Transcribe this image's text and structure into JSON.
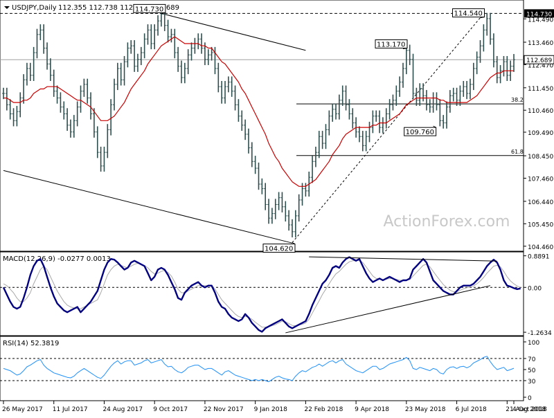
{
  "chart_data": [
    {
      "type": "line",
      "title": "USDJPY,Daily",
      "ohlc_text": "112.355 112.738 112.304 112.689",
      "watermark": "ActionForex.com",
      "ylim": [
        104.3,
        115.2
      ],
      "y_ticks": [
        114.49,
        113.46,
        112.47,
        111.45,
        110.46,
        109.49,
        108.45,
        107.46,
        106.44,
        105.45,
        104.46
      ],
      "y_tick_labels": [
        "114.490",
        "113.460",
        "112.470",
        "111.450",
        "110.460",
        "109.490",
        "108.450",
        "107.460",
        "106.440",
        "105.450",
        "104.460"
      ],
      "last_price": 112.689,
      "last_price_label": "112.689",
      "top_level": 114.73,
      "top_level_label": "114.730",
      "fib_levels": [
        {
          "label": "38.2",
          "value": 110.74
        },
        {
          "label": "61.8",
          "value": 108.46
        }
      ],
      "annotations": [
        {
          "label": "114.730",
          "index": 47,
          "value": 114.73
        },
        {
          "label": "104.620",
          "index": 86,
          "value": 104.62
        },
        {
          "label": "113.170",
          "index": 119,
          "value": 113.17
        },
        {
          "label": "109.760",
          "index": 128,
          "value": 109.76
        },
        {
          "label": "114.540",
          "index": 142,
          "value": 114.54
        }
      ],
      "trendlines": [
        {
          "from": [
            47,
            114.73
          ],
          "to": [
            90,
            113.1
          ],
          "style": "solid"
        },
        {
          "from": [
            0,
            107.8
          ],
          "to": [
            86,
            104.6
          ],
          "style": "solid"
        },
        {
          "from": [
            86,
            104.62
          ],
          "to": [
            142,
            114.54
          ],
          "style": "dashed"
        }
      ],
      "series": [
        {
          "name": "",
          "kind": "price",
          "values": [
            111.2,
            110.7,
            110.3,
            110.0,
            110.4,
            111.0,
            111.8,
            112.3,
            112.0,
            113.0,
            113.8,
            114.0,
            113.2,
            112.5,
            112.0,
            111.3,
            111.0,
            110.6,
            110.3,
            109.8,
            109.5,
            110.0,
            110.6,
            111.3,
            111.6,
            111.0,
            110.3,
            109.5,
            108.6,
            108.0,
            108.6,
            109.6,
            110.7,
            111.6,
            112.3,
            111.8,
            112.6,
            113.2,
            113.3,
            112.4,
            112.7,
            113.0,
            113.6,
            114.0,
            113.4,
            114.0,
            114.4,
            114.7,
            114.2,
            113.7,
            113.8,
            113.0,
            112.4,
            111.9,
            112.3,
            112.9,
            113.2,
            113.4,
            113.6,
            113.2,
            112.7,
            112.9,
            113.0,
            112.3,
            111.5,
            111.0,
            111.5,
            111.7,
            111.3,
            110.7,
            110.2,
            109.8,
            109.4,
            108.8,
            108.2,
            107.9,
            107.2,
            107.0,
            106.3,
            105.7,
            105.9,
            106.3,
            106.6,
            106.2,
            105.8,
            105.4,
            105.1,
            105.8,
            106.5,
            107.0,
            106.9,
            107.5,
            108.2,
            108.6,
            109.3,
            109.0,
            109.6,
            110.2,
            110.5,
            110.3,
            110.9,
            111.3,
            110.7,
            110.3,
            109.9,
            109.5,
            109.3,
            108.9,
            109.3,
            109.7,
            110.2,
            110.2,
            109.7,
            109.9,
            110.3,
            110.7,
            110.9,
            111.3,
            111.7,
            112.3,
            113.1,
            112.7,
            111.2,
            110.9,
            111.4,
            111.1,
            110.7,
            110.6,
            111.0,
            110.7,
            110.0,
            109.9,
            110.6,
            111.1,
            111.2,
            110.9,
            111.3,
            111.5,
            111.2,
            111.6,
            112.3,
            112.8,
            113.3,
            114.0,
            114.5,
            113.6,
            112.6,
            111.9,
            112.2,
            112.6,
            112.0,
            112.4,
            112.689
          ]
        },
        {
          "name": "",
          "kind": "moving-average",
          "values": [
            111.0,
            111.0,
            110.9,
            110.8,
            110.8,
            110.8,
            110.9,
            110.9,
            111.0,
            111.2,
            111.3,
            111.4,
            111.4,
            111.5,
            111.5,
            111.5,
            111.5,
            111.4,
            111.3,
            111.2,
            111.1,
            111.0,
            110.9,
            110.9,
            110.8,
            110.7,
            110.6,
            110.4,
            110.2,
            110.0,
            110.0,
            110.0,
            110.1,
            110.2,
            110.4,
            110.6,
            110.8,
            111.1,
            111.4,
            111.6,
            111.8,
            112.0,
            112.2,
            112.5,
            112.7,
            112.9,
            113.1,
            113.3,
            113.4,
            113.5,
            113.6,
            113.7,
            113.6,
            113.5,
            113.4,
            113.4,
            113.4,
            113.4,
            113.4,
            113.3,
            113.3,
            113.2,
            113.2,
            113.0,
            112.8,
            112.6,
            112.5,
            112.3,
            112.1,
            111.9,
            111.7,
            111.4,
            111.2,
            110.9,
            110.6,
            110.3,
            110.0,
            109.7,
            109.4,
            109.0,
            108.7,
            108.4,
            108.2,
            107.9,
            107.7,
            107.5,
            107.3,
            107.2,
            107.1,
            107.1,
            107.1,
            107.2,
            107.3,
            107.4,
            107.6,
            107.8,
            108.0,
            108.2,
            108.5,
            108.7,
            108.9,
            109.2,
            109.4,
            109.5,
            109.6,
            109.7,
            109.7,
            109.7,
            109.7,
            109.7,
            109.8,
            109.8,
            109.9,
            109.9,
            109.9,
            110.0,
            110.1,
            110.2,
            110.3,
            110.5,
            110.7,
            110.8,
            110.9,
            111.0,
            111.0,
            111.0,
            111.0,
            111.0,
            111.0,
            111.0,
            110.9,
            110.9,
            110.8,
            110.8,
            110.8,
            110.8,
            110.8,
            110.8,
            110.8,
            110.9,
            111.0,
            111.1,
            111.3,
            111.5,
            111.7,
            111.9,
            112.0,
            112.1,
            112.1,
            112.2,
            112.2,
            112.2,
            112.2
          ]
        }
      ]
    },
    {
      "type": "line",
      "title": "MACD(12,26,9) -0.0277 0.0013",
      "ylim": [
        -1.32,
        0.96
      ],
      "y_ticks": [
        0.8891,
        0.0,
        -1.2634
      ],
      "y_tick_labels": [
        "0.8891",
        "0.00",
        "-1.2634"
      ],
      "reference_lines": [
        0.0
      ],
      "trendlines": [
        {
          "from": [
            91,
            0.86
          ],
          "to": [
            147,
            0.74
          ],
          "style": "solid"
        },
        {
          "from": [
            84,
            -1.28
          ],
          "to": [
            145,
            0.05
          ],
          "style": "solid"
        }
      ],
      "series": [
        {
          "name": "",
          "kind": "macd",
          "values": [
            0.0,
            -0.2,
            -0.4,
            -0.55,
            -0.6,
            -0.55,
            -0.3,
            0.0,
            0.35,
            0.6,
            0.75,
            0.8,
            0.6,
            0.3,
            0.0,
            -0.25,
            -0.45,
            -0.55,
            -0.65,
            -0.7,
            -0.65,
            -0.6,
            -0.55,
            -0.7,
            -0.6,
            -0.5,
            -0.4,
            -0.25,
            -0.1,
            0.2,
            0.5,
            0.7,
            0.8,
            0.78,
            0.7,
            0.6,
            0.5,
            0.55,
            0.7,
            0.75,
            0.7,
            0.65,
            0.6,
            0.4,
            0.2,
            0.3,
            0.5,
            0.55,
            0.5,
            0.35,
            0.15,
            -0.05,
            -0.3,
            -0.35,
            -0.15,
            -0.05,
            0.05,
            0.1,
            0.15,
            0.05,
            0.0,
            0.05,
            0.05,
            -0.15,
            -0.4,
            -0.55,
            -0.6,
            -0.75,
            -0.85,
            -0.9,
            -0.95,
            -0.9,
            -0.75,
            -0.85,
            -1.0,
            -1.1,
            -1.2,
            -1.25,
            -1.15,
            -1.1,
            -1.05,
            -1.0,
            -0.95,
            -0.9,
            -1.0,
            -1.1,
            -1.15,
            -1.1,
            -1.05,
            -1.0,
            -0.95,
            -0.75,
            -0.5,
            -0.3,
            -0.1,
            0.1,
            0.2,
            0.35,
            0.55,
            0.6,
            0.55,
            0.7,
            0.8,
            0.85,
            0.8,
            0.75,
            0.8,
            0.6,
            0.4,
            0.25,
            0.15,
            0.2,
            0.25,
            0.2,
            0.25,
            0.3,
            0.25,
            0.2,
            0.15,
            0.2,
            0.2,
            0.25,
            0.5,
            0.6,
            0.7,
            0.8,
            0.7,
            0.45,
            0.2,
            0.1,
            0.0,
            -0.1,
            -0.15,
            -0.2,
            -0.2,
            -0.1,
            0.0,
            0.05,
            0.05,
            0.05,
            0.1,
            0.2,
            0.3,
            0.45,
            0.6,
            0.7,
            0.78,
            0.7,
            0.5,
            0.2,
            0.05,
            0.02,
            -0.02,
            -0.05,
            -0.03
          ]
        },
        {
          "name": "",
          "kind": "signal",
          "values": [
            0.1,
            0.05,
            -0.05,
            -0.15,
            -0.3,
            -0.4,
            -0.4,
            -0.3,
            -0.15,
            0.1,
            0.3,
            0.5,
            0.6,
            0.5,
            0.3,
            0.1,
            -0.1,
            -0.25,
            -0.4,
            -0.5,
            -0.55,
            -0.58,
            -0.6,
            -0.6,
            -0.55,
            -0.5,
            -0.45,
            -0.4,
            -0.35,
            -0.15,
            0.1,
            0.35,
            0.5,
            0.6,
            0.65,
            0.62,
            0.58,
            0.55,
            0.6,
            0.65,
            0.68,
            0.66,
            0.62,
            0.55,
            0.45,
            0.38,
            0.4,
            0.45,
            0.48,
            0.42,
            0.32,
            0.15,
            -0.05,
            -0.15,
            -0.15,
            -0.1,
            -0.05,
            0.0,
            0.05,
            0.05,
            0.05,
            0.05,
            0.05,
            -0.05,
            -0.2,
            -0.35,
            -0.45,
            -0.55,
            -0.65,
            -0.75,
            -0.82,
            -0.85,
            -0.82,
            -0.84,
            -0.9,
            -0.98,
            -1.05,
            -1.12,
            -1.12,
            -1.1,
            -1.08,
            -1.05,
            -1.0,
            -0.95,
            -0.97,
            -1.02,
            -1.07,
            -1.08,
            -1.06,
            -1.04,
            -1.0,
            -0.9,
            -0.72,
            -0.55,
            -0.38,
            -0.2,
            -0.05,
            0.1,
            0.25,
            0.38,
            0.45,
            0.55,
            0.65,
            0.72,
            0.75,
            0.75,
            0.76,
            0.7,
            0.58,
            0.45,
            0.32,
            0.25,
            0.24,
            0.22,
            0.23,
            0.25,
            0.25,
            0.23,
            0.2,
            0.2,
            0.2,
            0.22,
            0.32,
            0.42,
            0.52,
            0.62,
            0.65,
            0.58,
            0.45,
            0.32,
            0.2,
            0.08,
            0.0,
            -0.08,
            -0.12,
            -0.12,
            -0.08,
            -0.04,
            -0.01,
            0.01,
            0.04,
            0.1,
            0.18,
            0.28,
            0.4,
            0.5,
            0.6,
            0.62,
            0.58,
            0.45,
            0.3,
            0.18,
            0.1,
            0.04,
            0.0
          ]
        }
      ]
    },
    {
      "type": "line",
      "title": "RSI(14) 52.3819",
      "ylim": [
        0,
        100
      ],
      "y_ticks": [
        100,
        70,
        50,
        30,
        0
      ],
      "y_tick_labels": [
        "100",
        "70",
        "50",
        "30",
        "0"
      ],
      "reference_lines": [
        70,
        30
      ],
      "series": [
        {
          "name": "",
          "kind": "rsi",
          "values": [
            52,
            50,
            48,
            44,
            40,
            42,
            48,
            55,
            58,
            62,
            66,
            68,
            58,
            52,
            48,
            44,
            42,
            40,
            38,
            36,
            35,
            38,
            44,
            48,
            52,
            48,
            44,
            40,
            36,
            34,
            40,
            48,
            56,
            62,
            66,
            60,
            64,
            66,
            66,
            58,
            60,
            62,
            66,
            68,
            62,
            64,
            66,
            68,
            60,
            55,
            56,
            50,
            46,
            44,
            48,
            54,
            56,
            58,
            58,
            54,
            50,
            52,
            52,
            48,
            44,
            40,
            46,
            48,
            44,
            40,
            38,
            36,
            34,
            32,
            30,
            32,
            30,
            32,
            30,
            28,
            32,
            36,
            38,
            35,
            33,
            32,
            30,
            38,
            44,
            48,
            46,
            50,
            54,
            56,
            60,
            56,
            60,
            64,
            66,
            62,
            66,
            68,
            60,
            56,
            52,
            48,
            46,
            44,
            48,
            52,
            56,
            56,
            50,
            52,
            56,
            60,
            62,
            64,
            66,
            68,
            72,
            66,
            52,
            50,
            54,
            52,
            50,
            48,
            52,
            50,
            44,
            42,
            50,
            54,
            55,
            52,
            55,
            56,
            53,
            56,
            62,
            65,
            68,
            72,
            74,
            64,
            56,
            50,
            52,
            54,
            48,
            50,
            52.38
          ]
        }
      ]
    }
  ],
  "x_axis": {
    "labels": [
      "26 May 2017",
      "11 Jul 2017",
      "24 Aug 2017",
      "9 Oct 2017",
      "22 Nov 2017",
      "9 Jan 2018",
      "22 Feb 2018",
      "9 Apr 2018",
      "23 May 2018",
      "6 Jul 2018",
      "21 Aug 2018",
      "4 Oct 2018"
    ],
    "label_indices": [
      0,
      15,
      30,
      45,
      60,
      75,
      90,
      105,
      120,
      135,
      150,
      157
    ]
  },
  "colors": {
    "price_bar": "#2f4f4f",
    "moving_average": "#cc0000",
    "macd": "#000080",
    "signal": "#a9a9a9",
    "rsi": "#1e90ff",
    "levels": "#000000",
    "grid": "#c0c0c0",
    "watermark": "#c8c8c8",
    "last_price_box": "#000000"
  }
}
